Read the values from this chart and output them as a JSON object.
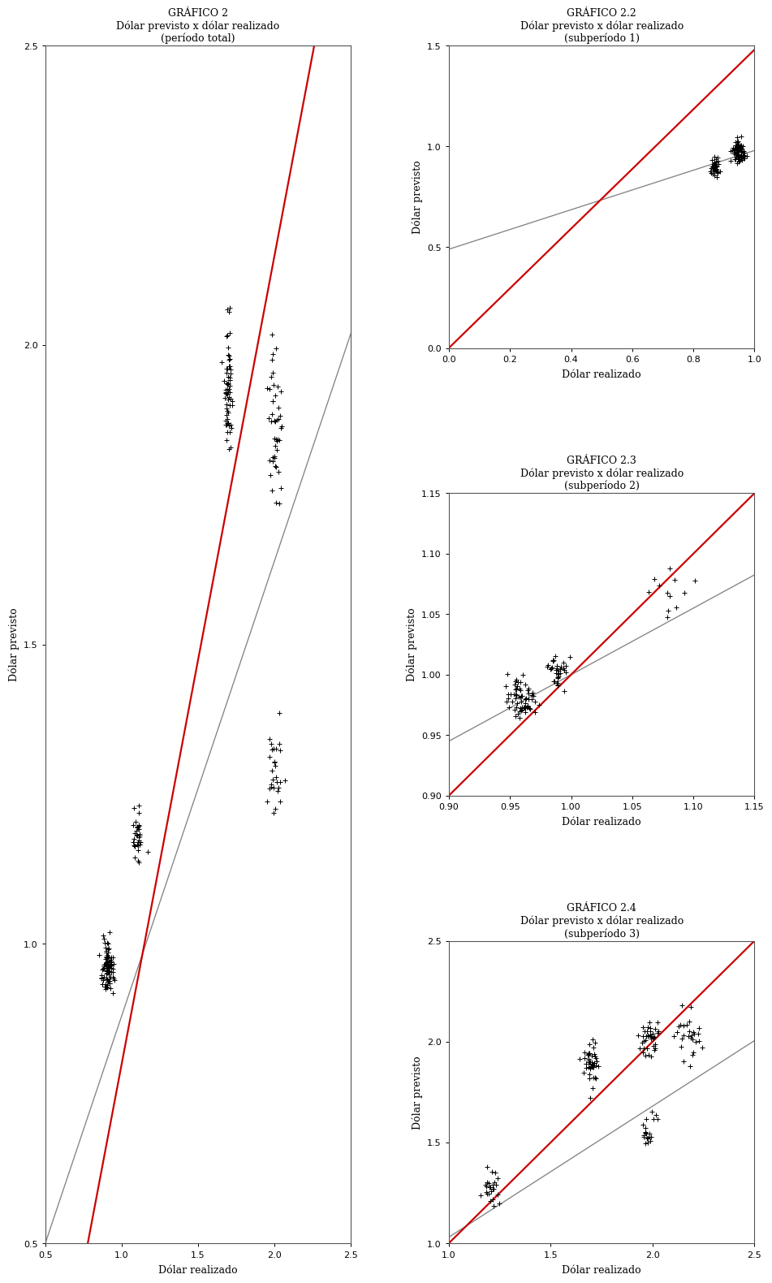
{
  "title_main": "GRÁFICO 2\nDólar previsto x dólar realizado\n(período total)",
  "title_22": "GRÁFICO 2.2\nDólar previsto x dólar realizado\n(subperíodo 1)",
  "title_23": "GRÁFICO 2.3\nDólar previsto x dólar realizado\n(subperíodo 2)",
  "title_24": "GRÁFICO 2.4\nDólar previsto x dólar realizado\n(subperíodo 3)",
  "xlabel": "Dólar realizado",
  "ylabel": "Dólar previsto",
  "red_line_color": "#cc0000",
  "gray_line_color": "#888888",
  "marker_color": "#000000",
  "bg_color": "#ffffff",
  "title_fontsize": 9,
  "axis_label_fontsize": 9,
  "tick_fontsize": 8,
  "g2_xlim": [
    0.5,
    2.5
  ],
  "g2_ylim": [
    0.5,
    2.5
  ],
  "g2_xticks": [
    0.5,
    1.0,
    1.5,
    2.0,
    2.5
  ],
  "g2_yticks": [
    0.5,
    1.0,
    1.5,
    2.0,
    2.5
  ],
  "g2_red_slope": 1.35,
  "g2_red_intercept": -0.55,
  "g2_gray_slope": 0.76,
  "g2_gray_intercept": 0.12,
  "g22_xlim": [
    0.0,
    1.0
  ],
  "g22_ylim": [
    0.0,
    1.5
  ],
  "g22_xticks": [
    0.0,
    0.2,
    0.4,
    0.6,
    0.8,
    1.0
  ],
  "g22_yticks": [
    0.0,
    0.5,
    1.0,
    1.5
  ],
  "g22_red_slope": 1.48,
  "g22_red_intercept": 0.0,
  "g22_gray_slope": 0.49,
  "g22_gray_intercept": 0.49,
  "g23_xlim": [
    0.9,
    1.15
  ],
  "g23_ylim": [
    0.9,
    1.15
  ],
  "g23_xticks": [
    0.9,
    0.95,
    1.0,
    1.05,
    1.1,
    1.15
  ],
  "g23_yticks": [
    0.9,
    0.95,
    1.0,
    1.05,
    1.1,
    1.15
  ],
  "g23_red_slope": 1.0,
  "g23_red_intercept": 0.0,
  "g23_gray_slope": 0.55,
  "g23_gray_intercept": 0.45,
  "g24_xlim": [
    1.0,
    2.5
  ],
  "g24_ylim": [
    1.0,
    2.5
  ],
  "g24_xticks": [
    1.0,
    1.5,
    2.0,
    2.5
  ],
  "g24_yticks": [
    1.0,
    1.5,
    2.0,
    2.5
  ],
  "g24_red_slope": 1.0,
  "g24_red_intercept": 0.0,
  "g24_gray_slope": 0.65,
  "g24_gray_intercept": 0.38
}
